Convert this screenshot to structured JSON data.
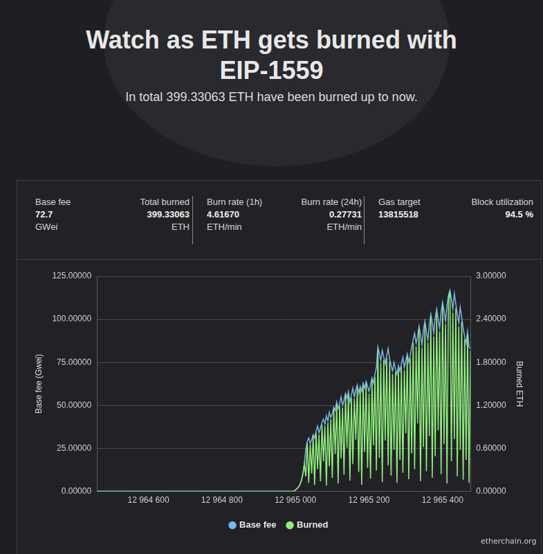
{
  "header": {
    "title": "Watch as ETH gets burned with EIP-1559",
    "subtitle": "In total 399.33063 ETH have been burned up to now."
  },
  "stats": [
    {
      "label": "Base fee",
      "value": "72.7",
      "unit": "GWei"
    },
    {
      "label": "Total burned",
      "value": "399.33063",
      "unit": "ETH"
    },
    {
      "label": "Burn rate (1h)",
      "value": "4.61670",
      "unit": "ETH/min"
    },
    {
      "label": "Burn rate (24h)",
      "value": "0.27731",
      "unit": "ETH/min"
    },
    {
      "label": "Gas target",
      "value": "13815518"
    },
    {
      "label": "Block utilization",
      "value": "94.5 %"
    }
  ],
  "credit": "etherchain.org",
  "chart_data": {
    "type": "line",
    "y_label": "Base fee (Gwei)",
    "y2_label": "Burned ETH",
    "x": [
      12964460,
      12964600,
      12964800,
      12964996,
      12965000,
      12965004,
      12965008,
      12965012,
      12965016,
      12965020,
      12965024,
      12965028,
      12965032,
      12965036,
      12965040,
      12965044,
      12965048,
      12965052,
      12965056,
      12965060,
      12965064,
      12965068,
      12965072,
      12965076,
      12965080,
      12965084,
      12965088,
      12965092,
      12965096,
      12965100,
      12965104,
      12965108,
      12965112,
      12965116,
      12965120,
      12965124,
      12965128,
      12965132,
      12965136,
      12965140,
      12965144,
      12965148,
      12965152,
      12965156,
      12965160,
      12965164,
      12965168,
      12965172,
      12965176,
      12965180,
      12965184,
      12965188,
      12965192,
      12965196,
      12965200,
      12965204,
      12965208,
      12965212,
      12965216,
      12965220,
      12965224,
      12965228,
      12965232,
      12965236,
      12965240,
      12965244,
      12965248,
      12965252,
      12965256,
      12965260,
      12965264,
      12965268,
      12965272,
      12965276,
      12965280,
      12965284,
      12965288,
      12965292,
      12965296,
      12965300,
      12965304,
      12965308,
      12965312,
      12965316,
      12965320,
      12965324,
      12965328,
      12965332,
      12965336,
      12965340,
      12965344,
      12965348,
      12965352,
      12965356,
      12965360,
      12965364,
      12965368,
      12965372,
      12965376,
      12965380,
      12965384,
      12965388,
      12965392,
      12965396,
      12965400,
      12965404,
      12965408,
      12965412,
      12965416,
      12965420,
      12965424,
      12965428,
      12965432,
      12965436,
      12965440,
      12965444,
      12965448,
      12965452,
      12965456,
      12965460,
      12965464,
      12965468,
      12965472,
      12965476
    ],
    "series": [
      {
        "name": "Base fee",
        "color": "#7cb5ec",
        "values": [
          0,
          0,
          0,
          0,
          1.0,
          1.6,
          2.5,
          4.0,
          6.4,
          10.2,
          16,
          24,
          29,
          31,
          28,
          30,
          33,
          31,
          35,
          38,
          34,
          37,
          40,
          42,
          39,
          44,
          41,
          46,
          43,
          45,
          49,
          47,
          52,
          48,
          51,
          55,
          50,
          53,
          57,
          54,
          58,
          52,
          56,
          60,
          55,
          59,
          62,
          57,
          61,
          58,
          63,
          60,
          64,
          61,
          58,
          62,
          66,
          63,
          68,
          72,
          84,
          80,
          76,
          82,
          78,
          74,
          79,
          83,
          77,
          73,
          70,
          75,
          71,
          68,
          73,
          70,
          74,
          78,
          72,
          76,
          80,
          75,
          79,
          84,
          88,
          92,
          86,
          90,
          96,
          91,
          85,
          94,
          99,
          93,
          88,
          97,
          103,
          98,
          92,
          101,
          106,
          100,
          95,
          104,
          110,
          105,
          99,
          108,
          114,
          117,
          112,
          106,
          115,
          109,
          103,
          98,
          107,
          101,
          95,
          90,
          86,
          93,
          84,
          83
        ]
      },
      {
        "name": "Burned",
        "color": "#90ee7e",
        "axis": "y2",
        "values": [
          0,
          0,
          0,
          0,
          0.02,
          0.04,
          0.06,
          0.09,
          0.15,
          0.24,
          0.38,
          0.21,
          0.68,
          0.12,
          0.66,
          0.25,
          0.77,
          0.09,
          0.82,
          0.31,
          0.79,
          0.14,
          0.93,
          0.42,
          0.91,
          0.08,
          0.96,
          0.35,
          1.01,
          0.19,
          1.15,
          0.52,
          1.22,
          0.11,
          1.19,
          0.46,
          1.17,
          0.23,
          1.34,
          0.61,
          1.36,
          0.15,
          1.31,
          0.38,
          1.29,
          0.72,
          1.45,
          0.27,
          1.43,
          0.09,
          1.48,
          0.55,
          1.5,
          0.33,
          1.36,
          0.18,
          1.55,
          0.64,
          1.6,
          0.29,
          1.98,
          0.47,
          1.79,
          0.13,
          1.83,
          0.71,
          1.86,
          0.36,
          1.81,
          0.22,
          1.64,
          0.58,
          1.67,
          0.12,
          1.71,
          0.44,
          1.74,
          0.26,
          1.69,
          0.81,
          1.88,
          0.17,
          1.86,
          0.53,
          2.07,
          0.31,
          2.02,
          0.95,
          2.26,
          0.14,
          2.0,
          0.62,
          2.33,
          0.28,
          2.07,
          0.77,
          2.42,
          0.19,
          2.16,
          0.49,
          2.49,
          0.85,
          2.23,
          0.24,
          2.59,
          0.66,
          2.33,
          0.11,
          2.68,
          2.79,
          0.42,
          2.49,
          0.73,
          2.56,
          0.21,
          2.3,
          0.58,
          2.37,
          0.16,
          2.12,
          0.44,
          2.19,
          0.12,
          1.96
        ]
      }
    ],
    "xlim": [
      12964460,
      12965476
    ],
    "xticks": [
      {
        "value": 12964600,
        "label": "12 964 600"
      },
      {
        "value": 12964800,
        "label": "12 964 800"
      },
      {
        "value": 12965000,
        "label": "12 965 000"
      },
      {
        "value": 12965200,
        "label": "12 965 200"
      },
      {
        "value": 12965400,
        "label": "12 965 400"
      }
    ],
    "ylim": [
      0,
      125
    ],
    "yticks": [
      {
        "value": 0,
        "label": "0.00000"
      },
      {
        "value": 25,
        "label": "25.00000"
      },
      {
        "value": 50,
        "label": "50.00000"
      },
      {
        "value": 75,
        "label": "75.00000"
      },
      {
        "value": 100,
        "label": "100.00000"
      },
      {
        "value": 125,
        "label": "125.00000"
      }
    ],
    "y2lim": [
      0,
      3
    ],
    "y2ticks": [
      {
        "value": 0,
        "label": "0.00000"
      },
      {
        "value": 0.6,
        "label": "0.60000"
      },
      {
        "value": 1.2,
        "label": "1.20000"
      },
      {
        "value": 1.8,
        "label": "1.80000"
      },
      {
        "value": 2.4,
        "label": "2.40000"
      },
      {
        "value": 3,
        "label": "3.00000"
      }
    ],
    "grid": true,
    "legend": "bottom"
  }
}
